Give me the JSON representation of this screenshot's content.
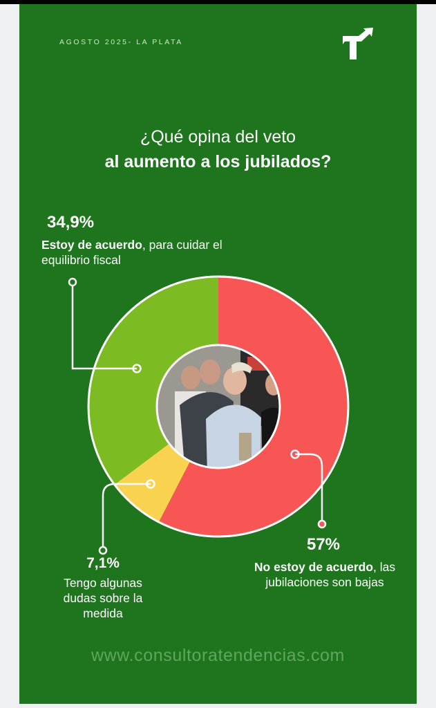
{
  "header": {
    "date_location": "AGOSTO 2025- LA PLATA",
    "logo_icon": "tendencias-arrow-logo"
  },
  "title": {
    "line1": "¿Qué opina del veto",
    "line2": "al aumento a los jubilados?"
  },
  "footer": {
    "url": "www.consultoratendencias.com"
  },
  "colors": {
    "background": "#1f741e",
    "agree": "#7dbb22",
    "doubt": "#f9d24f",
    "disagree": "#f85555"
  },
  "chart_data": {
    "type": "pie",
    "variant": "donut",
    "title": "¿Qué opina del veto al aumento a los jubilados?",
    "slices": [
      {
        "label_bold": "No estoy de acuerdo",
        "label_rest": ", las jubilaciones son bajas",
        "value": 57,
        "display": "57%",
        "color": "#f85555"
      },
      {
        "label_bold": "",
        "label_rest": "Tengo algunas dudas sobre la medida",
        "value": 7.1,
        "display": "7,1%",
        "color": "#f9d24f"
      },
      {
        "label_bold": "Estoy de acuerdo",
        "label_rest": ", para cuidar el equilibrio fiscal",
        "value": 34.9,
        "display": "34,9%",
        "color": "#7dbb22"
      }
    ]
  }
}
